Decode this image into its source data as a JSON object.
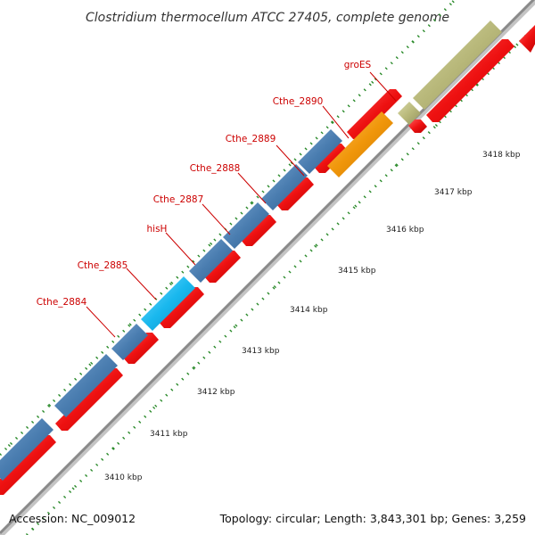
{
  "title": "Clostridium thermocellum ATCC 27405, complete genome",
  "footer": {
    "accession": "Accession: NC_009012",
    "summary": "Topology: circular; Length: 3,843,301 bp; Genes: 3,259"
  },
  "colors": {
    "background": "#ffffff",
    "backbone": "#909090",
    "cds_red": "#ee1111",
    "gene_blue": "#4a7db0",
    "gene_cyan": "#19b8ee",
    "gene_orange": "#f0960a",
    "gene_olive": "#b8b87a",
    "label_red": "#cc0000",
    "tick_green": "#2a8a2a"
  },
  "kbp_ticks": [
    "3410 kbp",
    "3411 kbp",
    "3412 kbp",
    "3413 kbp",
    "3414 kbp",
    "3415 kbp",
    "3416 kbp",
    "3417 kbp",
    "3418 kbp"
  ],
  "gene_labels": [
    "Cthe_2884",
    "Cthe_2885",
    "hisH",
    "Cthe_2887",
    "Cthe_2888",
    "Cthe_2889",
    "Cthe_2890",
    "groES"
  ]
}
